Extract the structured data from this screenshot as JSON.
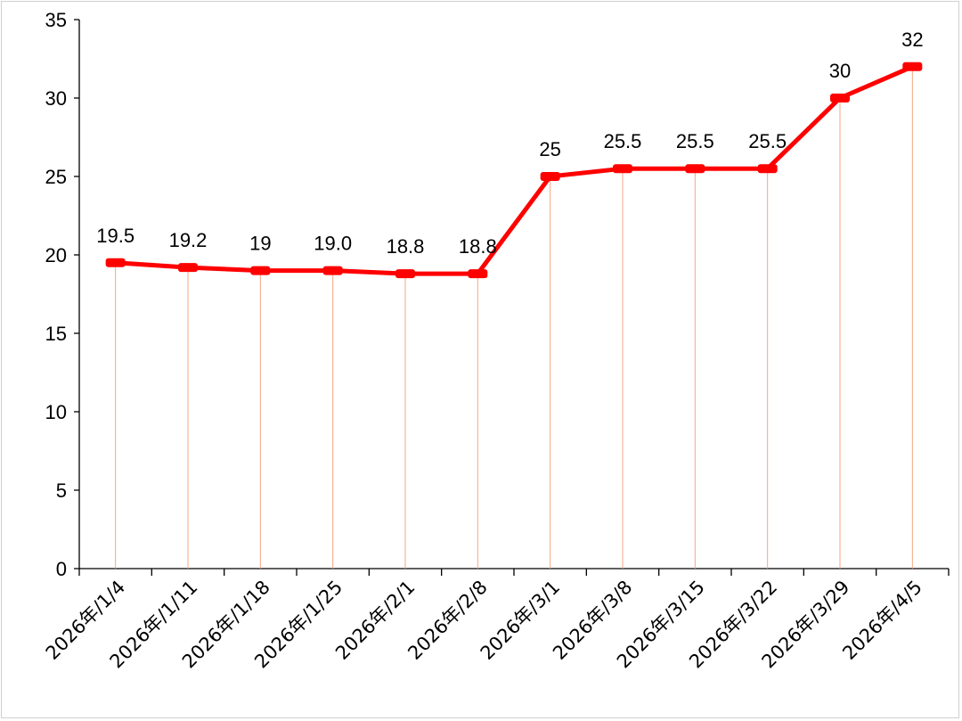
{
  "chart_data": {
    "type": "line",
    "categories": [
      "2026年/1/4",
      "2026年/1/11",
      "2026年/1/18",
      "2026年/1/25",
      "2026年/2/1",
      "2026年/2/8",
      "2026年/3/1",
      "2026年/3/8",
      "2026年/3/15",
      "2026年/3/22",
      "2026年/3/29",
      "2026年/4/5"
    ],
    "series": [
      {
        "values": [
          19.5,
          19.2,
          19,
          19.0,
          18.8,
          18.8,
          25,
          25.5,
          25.5,
          25.5,
          30,
          32
        ],
        "data_labels": [
          "19.5",
          "19.2",
          "19",
          "19.0",
          "18.8",
          "18.8",
          "25",
          "25.5",
          "25.5",
          "25.5",
          "30",
          "32"
        ]
      }
    ],
    "ylim": [
      0,
      35
    ],
    "yticks": [
      0,
      5,
      10,
      15,
      20,
      25,
      30,
      35
    ],
    "grid": false,
    "drop_lines": true,
    "colors": {
      "line": "#ff0000",
      "drop_line": "#f4a582",
      "axis": "#000000"
    }
  }
}
